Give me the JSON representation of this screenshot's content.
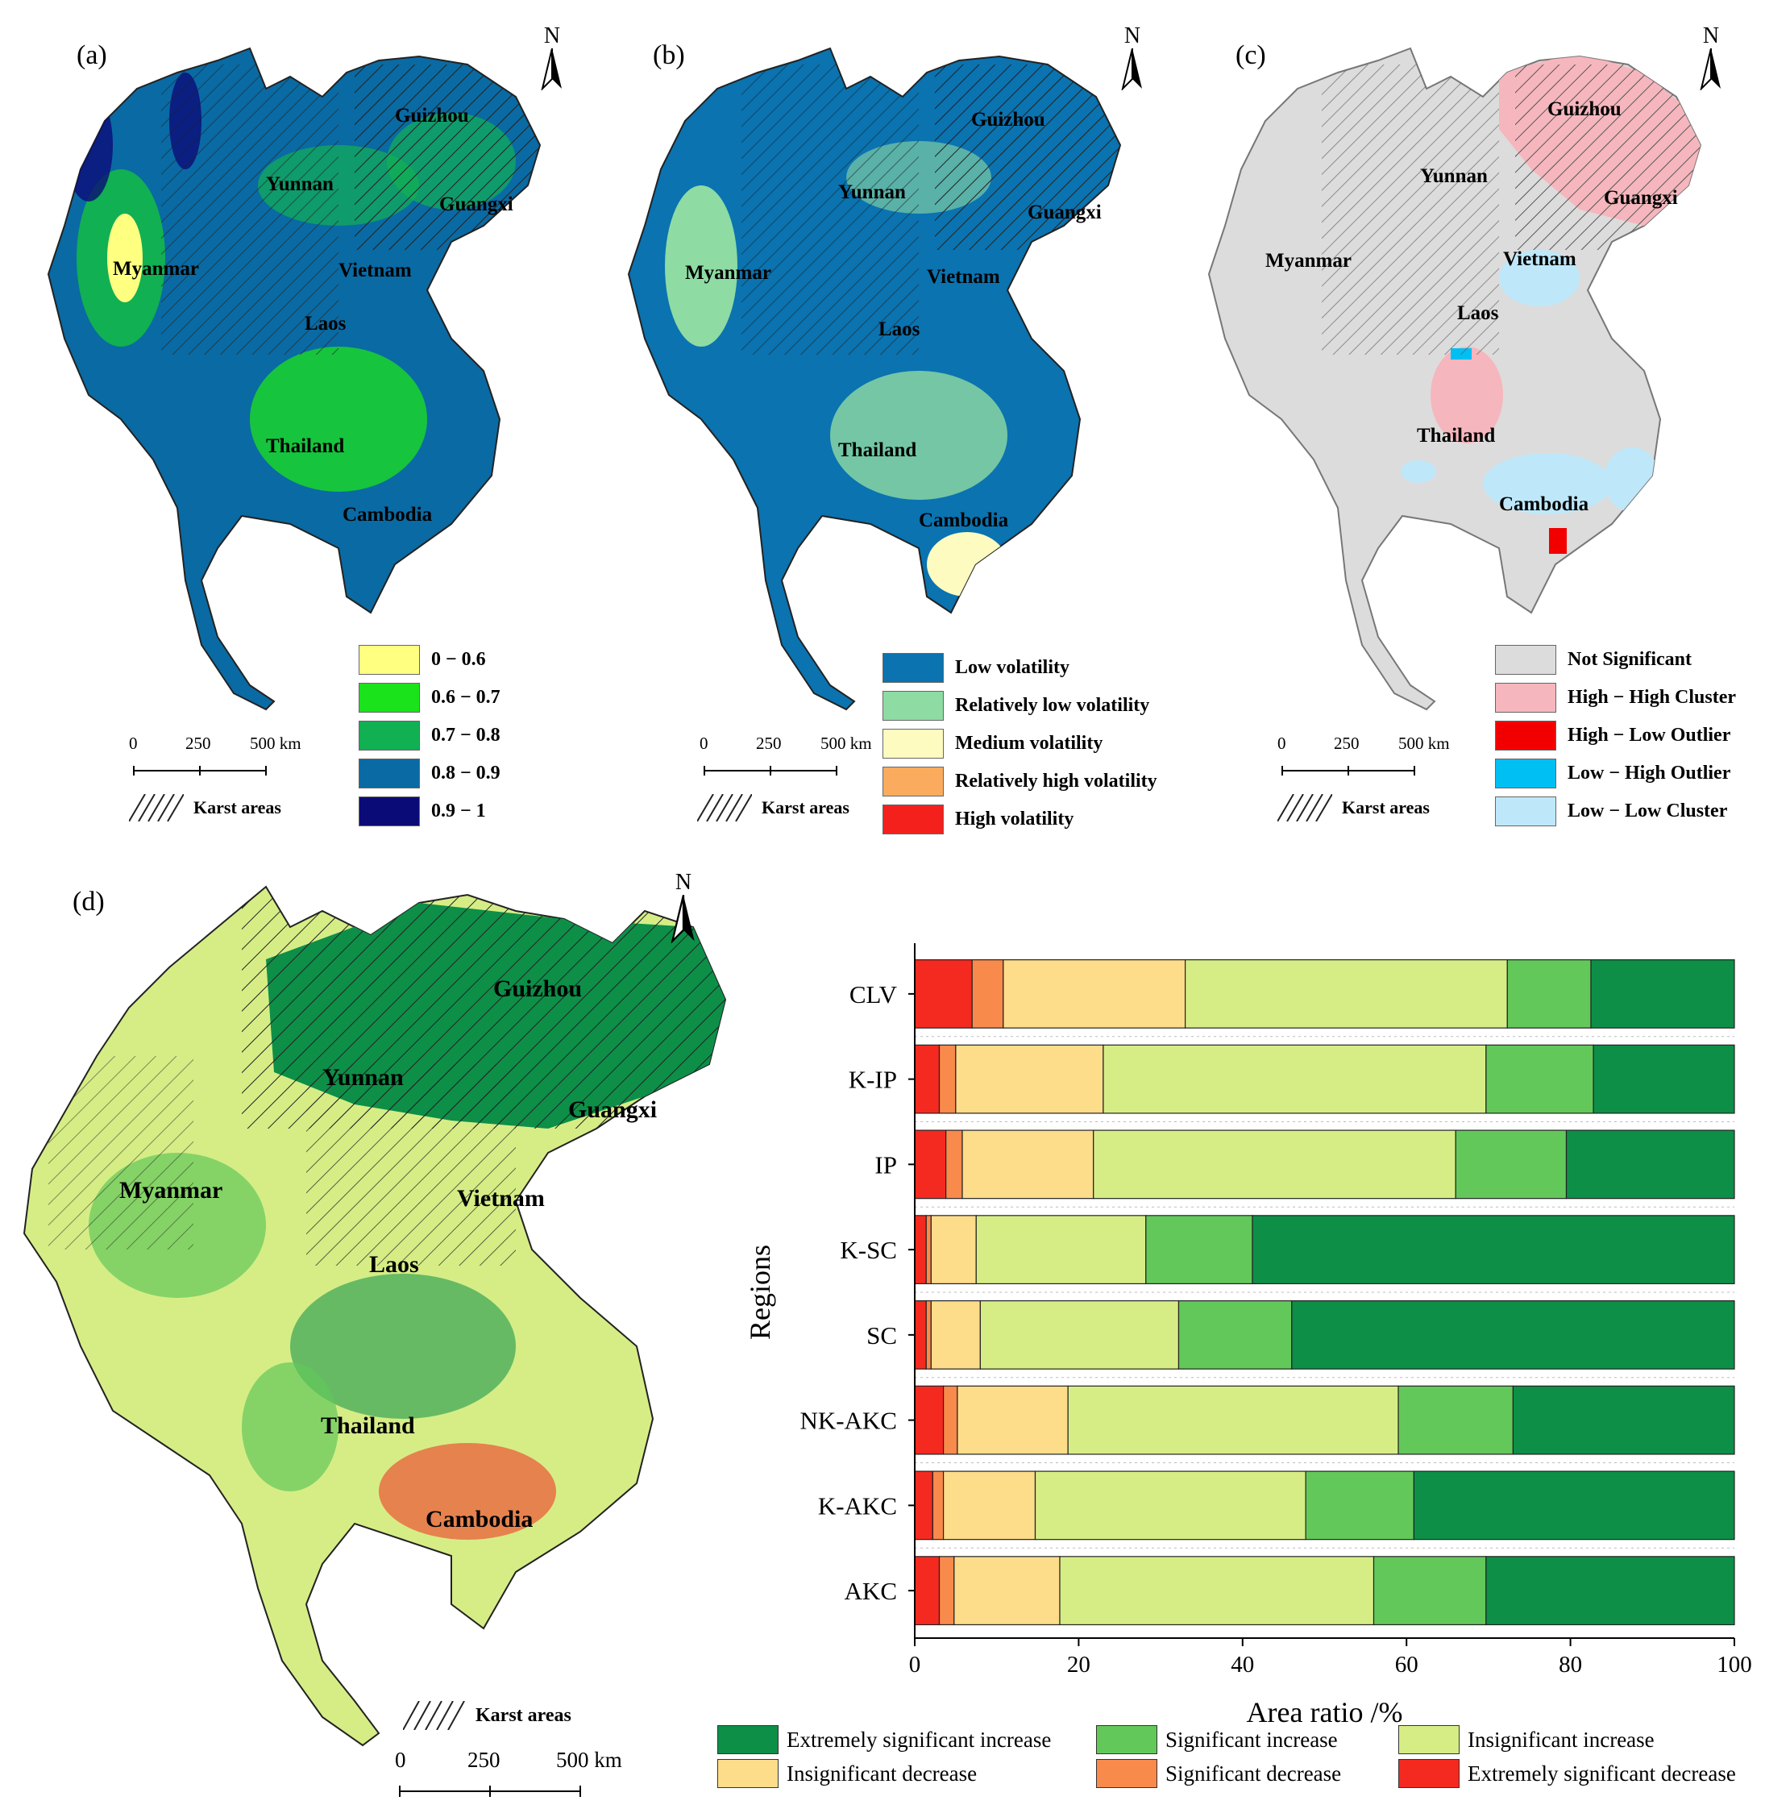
{
  "panels": {
    "a": {
      "label": "(a)",
      "north": "N",
      "regions": [
        "Guizhou",
        "Yunnan",
        "Guangxi",
        "Myanmar",
        "Vietnam",
        "Laos",
        "Thailand",
        "Cambodia"
      ],
      "legend": [
        {
          "label": "0 − 0.6",
          "color": "#ffff80"
        },
        {
          "label": "0.6 − 0.7",
          "color": "#1be31b"
        },
        {
          "label": "0.7 − 0.8",
          "color": "#11b052"
        },
        {
          "label": "0.8 − 0.9",
          "color": "#0a6aa3"
        },
        {
          "label": "0.9 − 1",
          "color": "#0b0b78"
        }
      ],
      "scale": {
        "ticks": [
          "0",
          "250",
          "500 km"
        ]
      },
      "karst": "Karst areas"
    },
    "b": {
      "label": "(b)",
      "north": "N",
      "regions": [
        "Guizhou",
        "Yunnan",
        "Guangxi",
        "Myanmar",
        "Vietnam",
        "Laos",
        "Thailand",
        "Cambodia"
      ],
      "legend": [
        {
          "label": "Low volatility",
          "color": "#0a73b0"
        },
        {
          "label": "Relatively low volatility",
          "color": "#8edba3"
        },
        {
          "label": "Medium volatility",
          "color": "#fdfbc0"
        },
        {
          "label": "Relatively high volatility",
          "color": "#fbab5e"
        },
        {
          "label": "High volatility",
          "color": "#f4201c"
        }
      ],
      "scale": {
        "ticks": [
          "0",
          "250",
          "500 km"
        ]
      },
      "karst": "Karst areas"
    },
    "c": {
      "label": "(c)",
      "north": "N",
      "regions": [
        "Guizhou",
        "Yunnan",
        "Guangxi",
        "Myanmar",
        "Vietnam",
        "Laos",
        "Thailand",
        "Cambodia"
      ],
      "legend": [
        {
          "label": "Not Significant",
          "color": "#dcdcdc"
        },
        {
          "label": "High − High Cluster",
          "color": "#f6b6bd"
        },
        {
          "label": "High − Low Outlier",
          "color": "#f20000"
        },
        {
          "label": "Low − High Outlier",
          "color": "#00bff2"
        },
        {
          "label": "Low − Low Cluster",
          "color": "#bee8fa"
        }
      ],
      "scale": {
        "ticks": [
          "0",
          "250",
          "500 km"
        ]
      },
      "karst": "Karst areas"
    },
    "d": {
      "label": "(d)",
      "north": "N",
      "regions": [
        "Guizhou",
        "Yunnan",
        "Guangxi",
        "Myanmar",
        "Vietnam",
        "Laos",
        "Thailand",
        "Cambodia"
      ],
      "scale": {
        "ticks": [
          "0",
          "250",
          "500 km"
        ]
      },
      "karst": "Karst areas"
    }
  },
  "chart_data": {
    "type": "bar",
    "orientation": "horizontal-stacked",
    "categories": [
      "CLV",
      "K-IP",
      "IP",
      "K-SC",
      "SC",
      "NK-AKC",
      "K-AKC",
      "AKC"
    ],
    "xlabel": "Area ratio /%",
    "ylabel": "Regions",
    "xlim": [
      0,
      100
    ],
    "xticks": [
      "0",
      "20",
      "40",
      "60",
      "80",
      "100"
    ],
    "series": [
      {
        "name": "Extremely significant decrease",
        "color": "#f42a20",
        "values": [
          7.0,
          3.0,
          3.8,
          1.4,
          1.4,
          3.5,
          2.2,
          3.0
        ]
      },
      {
        "name": "Significant decrease",
        "color": "#f88a4c",
        "values": [
          3.8,
          2.0,
          2.0,
          0.6,
          0.6,
          1.7,
          1.3,
          1.8
        ]
      },
      {
        "name": "Insignificant decrease",
        "color": "#fddc8a",
        "values": [
          22.2,
          18.0,
          16.0,
          5.5,
          6.0,
          13.5,
          11.2,
          12.9
        ]
      },
      {
        "name": "Insignificant increase",
        "color": "#d6ed86",
        "values": [
          39.3,
          46.7,
          44.2,
          20.7,
          24.2,
          40.3,
          33.0,
          38.3
        ]
      },
      {
        "name": "Significant increase",
        "color": "#63c85a",
        "values": [
          10.2,
          13.1,
          13.5,
          13.0,
          13.8,
          14.0,
          13.2,
          13.7
        ]
      },
      {
        "name": "Extremely significant increase",
        "color": "#0d8f48",
        "values": [
          17.5,
          17.2,
          20.5,
          58.8,
          54.0,
          27.0,
          39.1,
          30.3
        ]
      }
    ],
    "legend": [
      "Extremely significant increase",
      "Significant increase",
      "Insignificant increase",
      "Insignificant decrease",
      "Significant decrease",
      "Extremely significant decrease"
    ],
    "grid": false,
    "legend_placement": "bottom"
  }
}
